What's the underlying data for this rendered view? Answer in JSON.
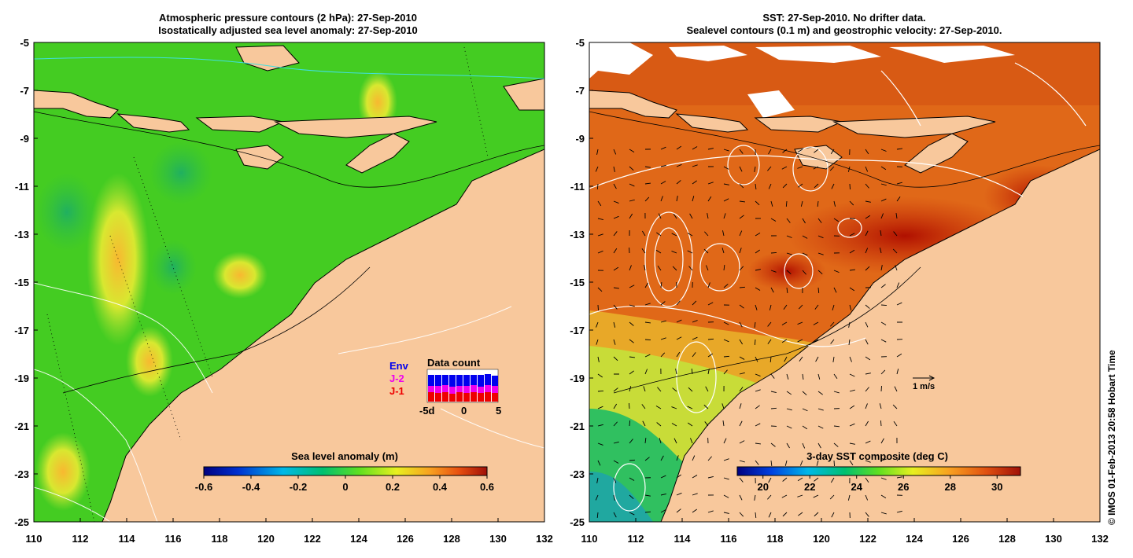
{
  "left_panel": {
    "title_line1": "Atmospheric pressure contours (2 hPa): 27-Sep-2010",
    "title_line2": "Isostatically adjusted sea level anomaly: 27-Sep-2010",
    "colorbar": {
      "title": "Sea level anomaly (m)",
      "ticks": [
        "-0.6",
        "-0.4",
        "-0.2",
        "0",
        "0.2",
        "0.4",
        "0.6"
      ]
    },
    "data_count": {
      "title": "Data count",
      "legend": [
        {
          "label": "Env",
          "color": "#0000ee"
        },
        {
          "label": "J-2",
          "color": "#ee00ee"
        },
        {
          "label": "J-1",
          "color": "#ee0000"
        }
      ],
      "xticks": [
        "-5d",
        "0",
        "5"
      ]
    }
  },
  "right_panel": {
    "title_line1": "SST: 27-Sep-2010. No drifter data.",
    "title_line2": "Sealevel contours (0.1 m) and geostrophic velocity: 27-Sep-2010.",
    "colorbar": {
      "title": "3-day SST composite (deg C)",
      "ticks": [
        "20",
        "22",
        "24",
        "26",
        "28",
        "30"
      ]
    },
    "velocity_scale": "1 m/s"
  },
  "axes": {
    "lat_ticks": [
      "-5",
      "-7",
      "-9",
      "-11",
      "-13",
      "-15",
      "-17",
      "-19",
      "-21",
      "-23",
      "-25"
    ],
    "lon_ticks": [
      "110",
      "112",
      "114",
      "116",
      "118",
      "120",
      "122",
      "124",
      "126",
      "128",
      "130",
      "132"
    ]
  },
  "credit": "© IMOS 01-Feb-2013 20:58 Hobart Time",
  "colors": {
    "land": "#f8c89c",
    "sea_base_left": "#44cc22",
    "sst_warm": "#dd5511",
    "sst_hot": "#bb1100",
    "sst_cool": "#22bb66"
  }
}
